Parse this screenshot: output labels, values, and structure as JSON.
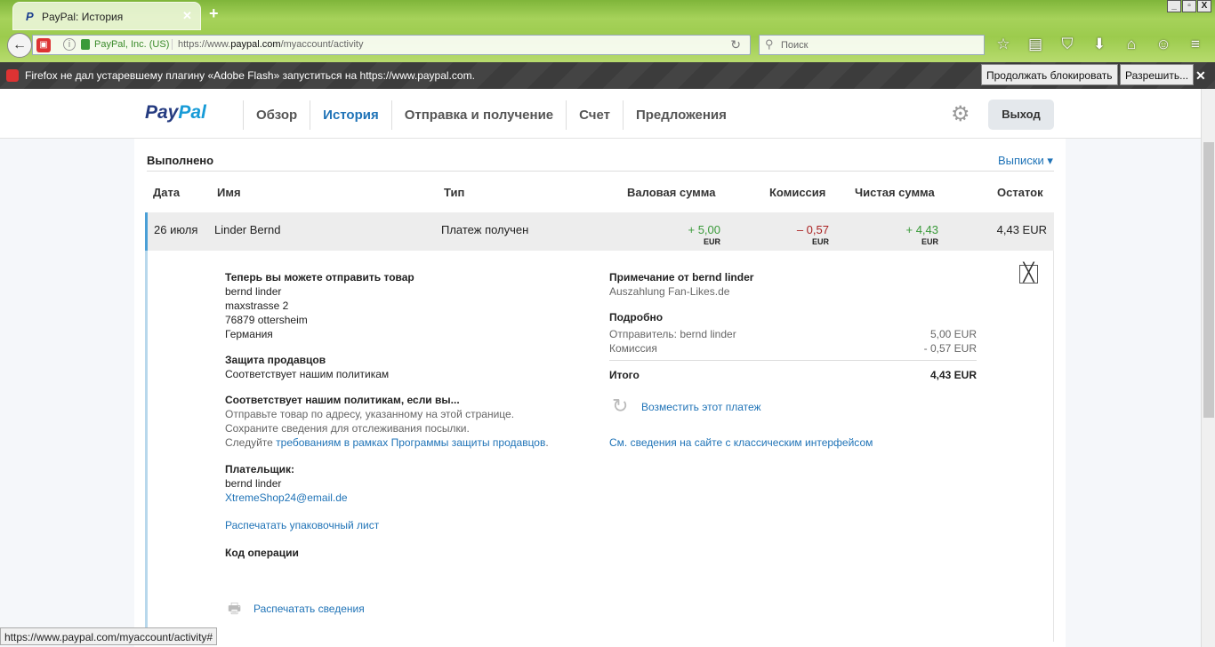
{
  "browser": {
    "tab_title": "PayPal: История",
    "org": "PayPal, Inc. (US)",
    "url_pre": "https://www.",
    "url_host": "paypal.com",
    "url_post": "/myaccount/activity",
    "search_placeholder": "Поиск",
    "notification": "Firefox не дал устаревшему плагину «Adobe Flash» запуститься на https://www.paypal.com.",
    "continue_block": "Продолжать блокировать",
    "allow": "Разрешить...",
    "status_url": "https://www.paypal.com/myaccount/activity#"
  },
  "header": {
    "logo_a": "Pay",
    "logo_b": "Pal",
    "nav": [
      "Обзор",
      "История",
      "Отправка и получение",
      "Счет",
      "Предложения"
    ],
    "active": "История",
    "logout": "Выход"
  },
  "section": {
    "title": "Выполнено",
    "statements": "Выписки ▾"
  },
  "columns": [
    "Дата",
    "Имя",
    "Тип",
    "Валовая сумма",
    "Комиссия",
    "Чистая сумма",
    "Остаток"
  ],
  "transaction": {
    "date": "26 июля",
    "name": "Linder Bernd",
    "type": "Платеж получен",
    "gross": "+ 5,00",
    "fee": "– 0,57",
    "net": "+ 4,43",
    "currency": "EUR",
    "balance": "4,43 EUR"
  },
  "details": {
    "ship_title": "Теперь вы можете отправить товар",
    "address": [
      "bernd linder",
      "maxstrasse 2",
      "76879 ottersheim",
      "Германия"
    ],
    "protection_title": "Защита продавцов",
    "protection_text": "Соответствует нашим политикам",
    "policy_title": "Соответствует нашим политикам, если вы...",
    "policy_1": "Отправьте товар по адресу, указанному на этой странице.",
    "policy_2": "Сохраните сведения для отслеживания посылки.",
    "policy_3a": "Следуйте ",
    "policy_3b": "требованиям в рамках Программы защиты продавцов",
    "payer_title": "Плательщик:",
    "payer_name": "bernd linder",
    "payer_email": "XtremeShop24@email.de",
    "print_packing": "Распечатать упаковочный лист",
    "txn_code": "Код операции",
    "print_details": "Распечатать сведения",
    "note_title": "Примечание от bernd linder",
    "note": "Auszahlung Fan-Likes.de",
    "breakdown_title": "Подробно",
    "sender_label": "Отправитель: bernd linder",
    "sender_amount": "5,00 EUR",
    "fee_label": "Комиссия",
    "fee_amount": "- 0,57 EUR",
    "total_label": "Итого",
    "total_amount": "4,43 EUR",
    "refund": "Возместить этот платеж",
    "classic": "См. сведения на сайте с классическим интерфейсом"
  }
}
